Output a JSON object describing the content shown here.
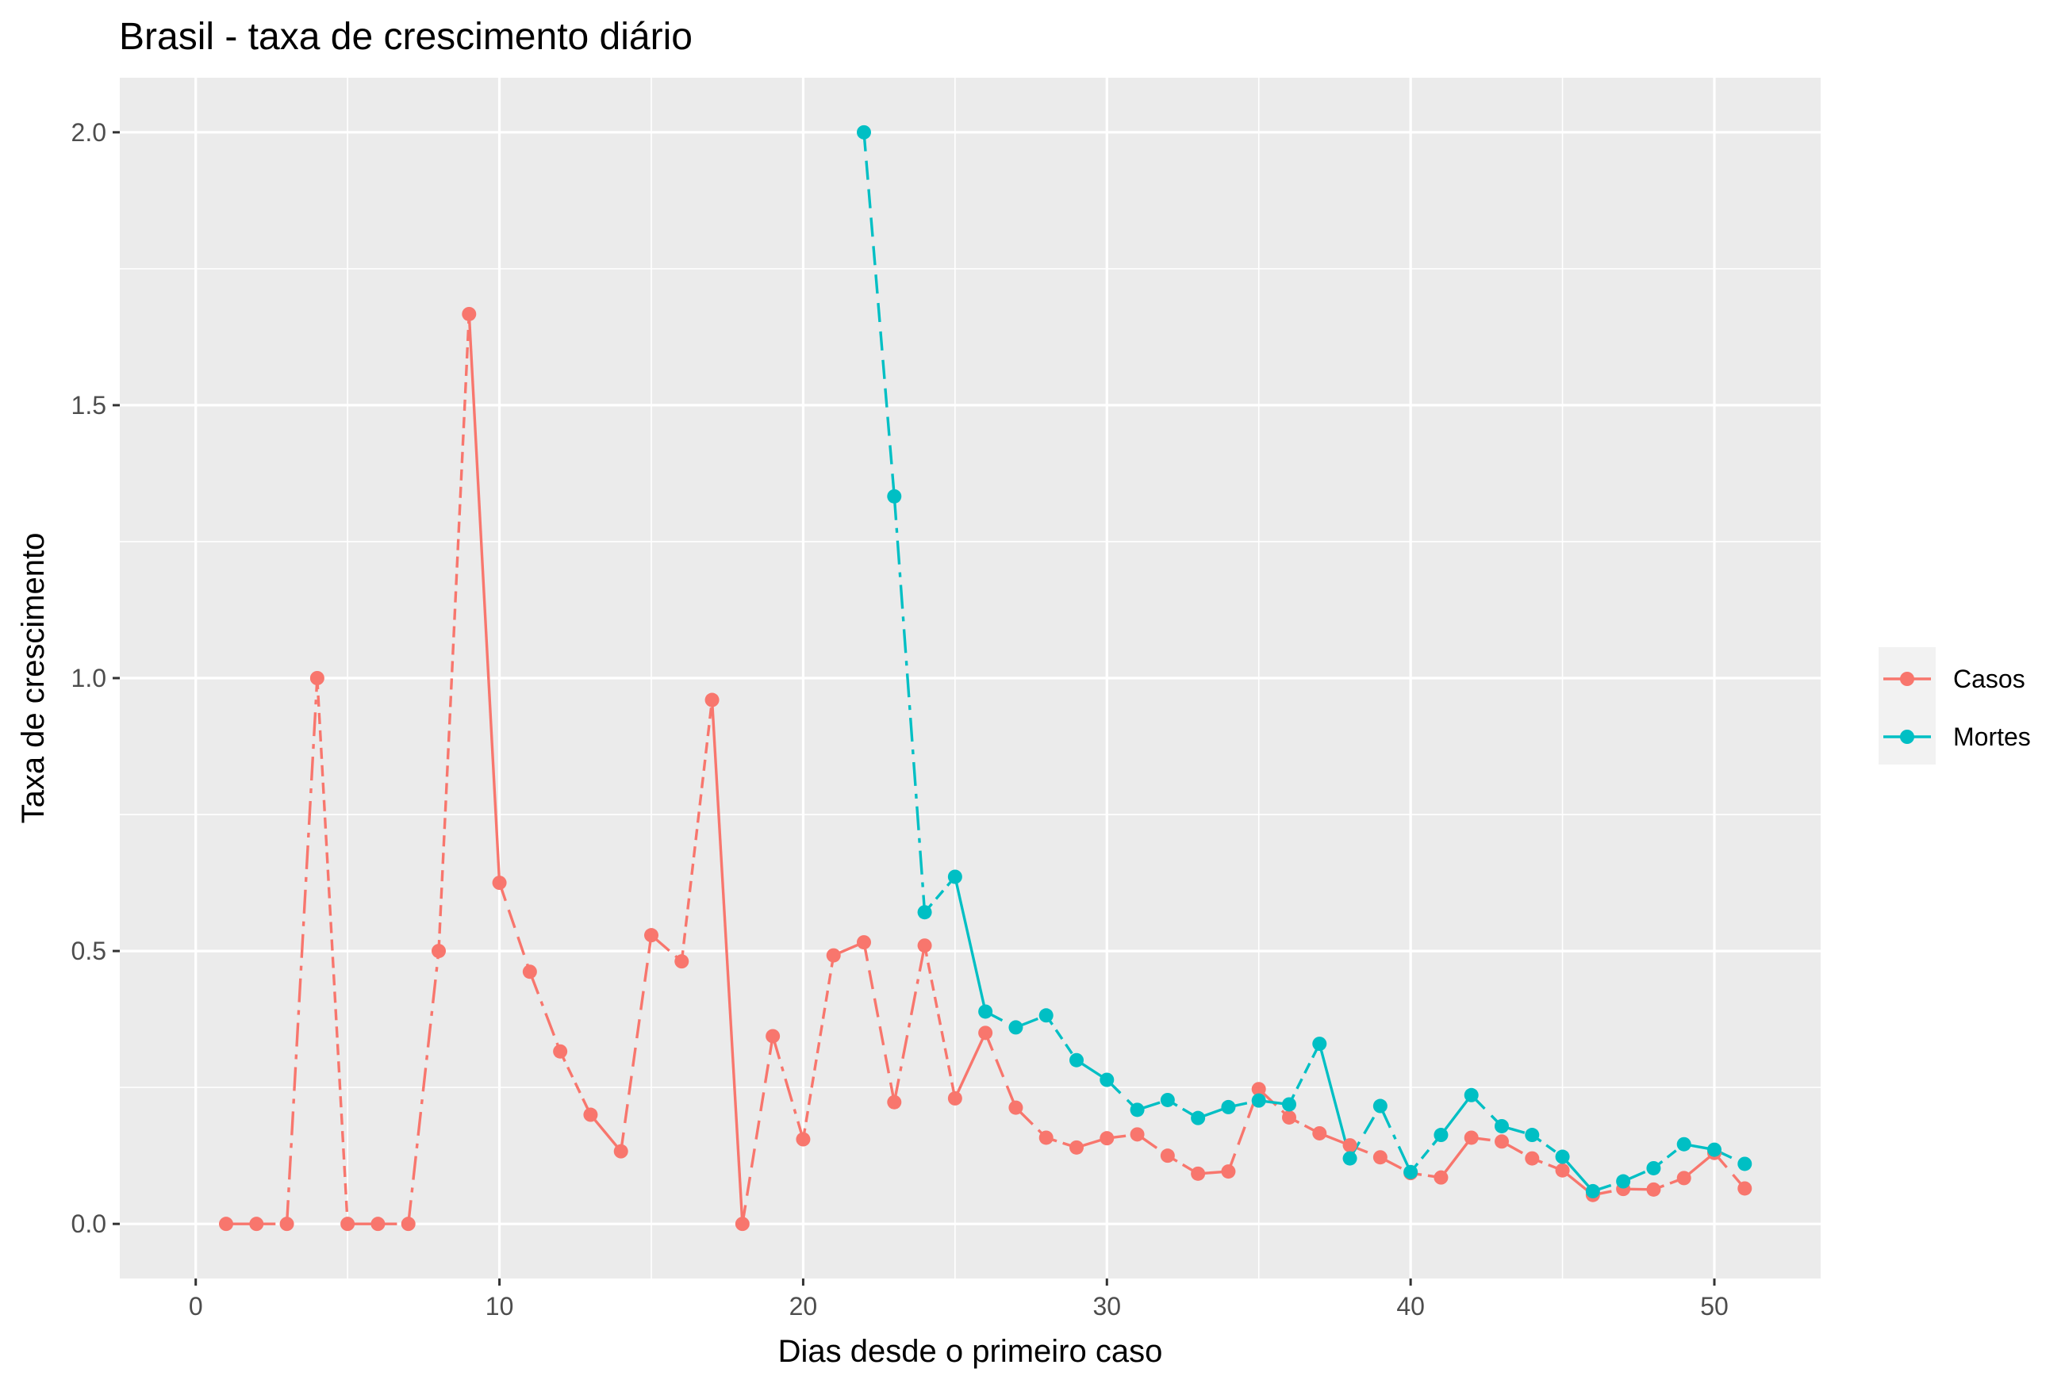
{
  "chart_data": {
    "type": "line",
    "title": "Brasil - taxa de crescimento diário",
    "xlabel": "Dias desde o primeiro caso",
    "ylabel": "Taxa de crescimento",
    "xlim": [
      -2.5,
      53.5
    ],
    "ylim": [
      -0.1,
      2.1
    ],
    "x_ticks": [
      0,
      10,
      20,
      30,
      40,
      50
    ],
    "y_ticks": [
      0.0,
      0.5,
      1.0,
      1.5,
      2.0
    ],
    "x_tick_labels": [
      "0",
      "10",
      "20",
      "30",
      "40",
      "50"
    ],
    "y_tick_labels": [
      "0.0",
      "0.5",
      "1.0",
      "1.5",
      "2.0"
    ],
    "grid": true,
    "legend_position": "right",
    "series": [
      {
        "name": "Casos",
        "color": "#F8766D",
        "x": [
          1,
          2,
          3,
          4,
          5,
          6,
          7,
          8,
          9,
          10,
          11,
          12,
          13,
          14,
          15,
          16,
          17,
          18,
          19,
          20,
          21,
          22,
          23,
          24,
          25,
          26,
          27,
          28,
          29,
          30,
          31,
          32,
          33,
          34,
          35,
          36,
          37,
          38,
          39,
          40,
          41,
          42,
          43,
          44,
          45,
          46,
          47,
          48,
          49,
          50,
          51
        ],
        "values": [
          0.0,
          0.0,
          0.0,
          1.0,
          0.0,
          0.0,
          0.0,
          0.5,
          1.667,
          0.625,
          0.462,
          0.316,
          0.2,
          0.133,
          0.529,
          0.481,
          0.96,
          0.0,
          0.344,
          0.155,
          0.492,
          0.516,
          0.223,
          0.51,
          0.23,
          0.35,
          0.213,
          0.158,
          0.14,
          0.157,
          0.164,
          0.125,
          0.092,
          0.096,
          0.247,
          0.195,
          0.166,
          0.144,
          0.122,
          0.093,
          0.085,
          0.158,
          0.151,
          0.12,
          0.098,
          0.053,
          0.064,
          0.063,
          0.084,
          0.13,
          0.065
        ]
      },
      {
        "name": "Mortes",
        "color": "#00BFC4",
        "x": [
          22,
          23,
          24,
          25,
          26,
          27,
          28,
          29,
          30,
          31,
          32,
          33,
          34,
          35,
          36,
          37,
          38,
          39,
          40,
          41,
          42,
          43,
          44,
          45,
          46,
          47,
          48,
          49,
          50,
          51
        ],
        "values": [
          2.0,
          1.333,
          0.571,
          0.636,
          0.389,
          0.36,
          0.382,
          0.3,
          0.264,
          0.209,
          0.227,
          0.194,
          0.214,
          0.226,
          0.219,
          0.33,
          0.12,
          0.216,
          0.095,
          0.163,
          0.236,
          0.179,
          0.163,
          0.123,
          0.06,
          0.078,
          0.102,
          0.146,
          0.136,
          0.11
        ]
      }
    ]
  }
}
